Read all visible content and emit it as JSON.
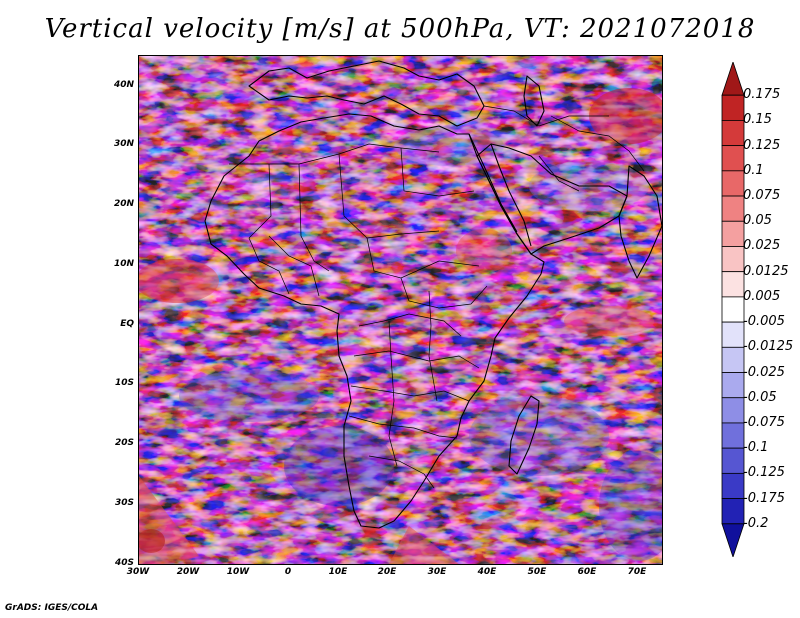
{
  "title": "Vertical velocity [m/s] at 500hPa, VT: 2021072018",
  "map": {
    "region": "Africa",
    "lat_ticks": [
      "40N",
      "30N",
      "20N",
      "10N",
      "EQ",
      "10S",
      "20S",
      "30S",
      "40S"
    ],
    "lon_ticks": [
      "30W",
      "20W",
      "10W",
      "0",
      "10E",
      "20E",
      "30E",
      "40E",
      "50E",
      "60E",
      "70E"
    ],
    "lat_range": [
      -40,
      45
    ],
    "lon_range": [
      -30,
      75
    ]
  },
  "colorbar": {
    "labels": [
      "0.175",
      "0.15",
      "0.125",
      "0.1",
      "0.075",
      "0.05",
      "0.025",
      "0.0125",
      "0.005",
      "-0.005",
      "-0.0125",
      "-0.025",
      "-0.05",
      "-0.075",
      "-0.1",
      "-0.125",
      "-0.175",
      "-0.2"
    ],
    "colors": [
      "#a01818",
      "#c02424",
      "#d43a3a",
      "#e05050",
      "#e86868",
      "#ef8282",
      "#f4a0a0",
      "#f9c4c4",
      "#fce2e2",
      "#ffffff",
      "#e2e2fa",
      "#c6c6f4",
      "#aaaaee",
      "#8e8ee6",
      "#7070dc",
      "#5656d2",
      "#3a3ac6",
      "#2222b4",
      "#10109c"
    ]
  },
  "credit": "GrADS: IGES/COLA"
}
